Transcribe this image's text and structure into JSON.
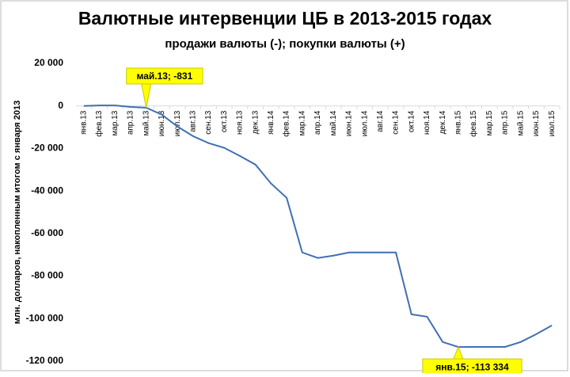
{
  "chart_data": {
    "type": "line",
    "title": "Валютные интервенции ЦБ в 2013-2015 годах",
    "subtitle": "продажи валюты (-); покупки валюты (+)",
    "y_label": "млн. долларов, накопленным итогом с января 2013",
    "categories": [
      "янв.13",
      "фев.13",
      "мар.13",
      "апр.13",
      "май.13",
      "июн.13",
      "июл.13",
      "авг.13",
      "сен.13",
      "окт.13",
      "ноя.13",
      "дек.13",
      "янв.14",
      "фев.14",
      "мар.14",
      "апр.14",
      "май.14",
      "июн.14",
      "июл.14",
      "авг.14",
      "сен.14",
      "окт.14",
      "ноя.14",
      "дек.14",
      "янв.15",
      "фев.15",
      "мар.15",
      "апр.15",
      "май.15",
      "июн.15",
      "июл.15"
    ],
    "series": [
      {
        "color": "#3f6fb5",
        "values": [
          0,
          200,
          200,
          -500,
          -831,
          -4100,
          -9700,
          -14200,
          -17500,
          -19700,
          -23500,
          -27600,
          -36500,
          -43200,
          -68900,
          -71500,
          -70400,
          -68900,
          -68900,
          -68900,
          -68900,
          -98000,
          -99100,
          -111000,
          -113334,
          -113300,
          -113300,
          -113300,
          -111000,
          -107300,
          -103200
        ]
      }
    ],
    "annotations": [
      {
        "label": "май.13; -831",
        "x": "май.13",
        "y": -831
      },
      {
        "label": "янв.15; -113 334",
        "x": "янв.15",
        "y": -113334
      }
    ],
    "ylim": [
      -120000,
      20000
    ],
    "yticks": [
      {
        "value": -120000,
        "label": "-120 000"
      },
      {
        "value": -100000,
        "label": "-100 000"
      },
      {
        "value": -80000,
        "label": "-80 000"
      },
      {
        "value": -60000,
        "label": "-60 000"
      },
      {
        "value": -40000,
        "label": "-40 000"
      },
      {
        "value": -20000,
        "label": "-20 000"
      },
      0,
      {
        "value": 20000,
        "label": "20 000"
      }
    ],
    "grid": false
  }
}
